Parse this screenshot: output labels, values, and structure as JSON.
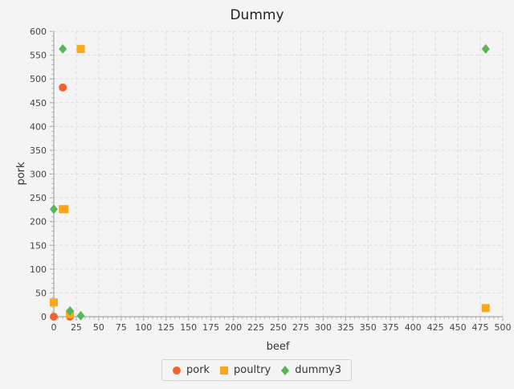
{
  "chart_data": {
    "type": "scatter",
    "title": "Dummy",
    "xlabel": "beef",
    "ylabel": "pork",
    "xlim": [
      0,
      500
    ],
    "ylim": [
      0,
      600
    ],
    "x_tick_step": 25,
    "y_tick_step": 50,
    "grid": true,
    "legend_position": "bottom",
    "series": [
      {
        "name": "pork",
        "marker": "circle",
        "color": "#f3622d",
        "points": [
          [
            0,
            0
          ],
          [
            10,
            482
          ],
          [
            18,
            0
          ]
        ]
      },
      {
        "name": "poultry",
        "marker": "square",
        "color": "#fba71b",
        "points": [
          [
            0,
            30
          ],
          [
            10,
            226
          ],
          [
            12,
            226
          ],
          [
            30,
            563
          ],
          [
            18,
            5
          ],
          [
            481,
            18
          ]
        ]
      },
      {
        "name": "dummy3",
        "marker": "diamond",
        "color": "#57b757",
        "points": [
          [
            0,
            226
          ],
          [
            10,
            563
          ],
          [
            18,
            12
          ],
          [
            30,
            2
          ],
          [
            481,
            563
          ]
        ]
      }
    ]
  }
}
